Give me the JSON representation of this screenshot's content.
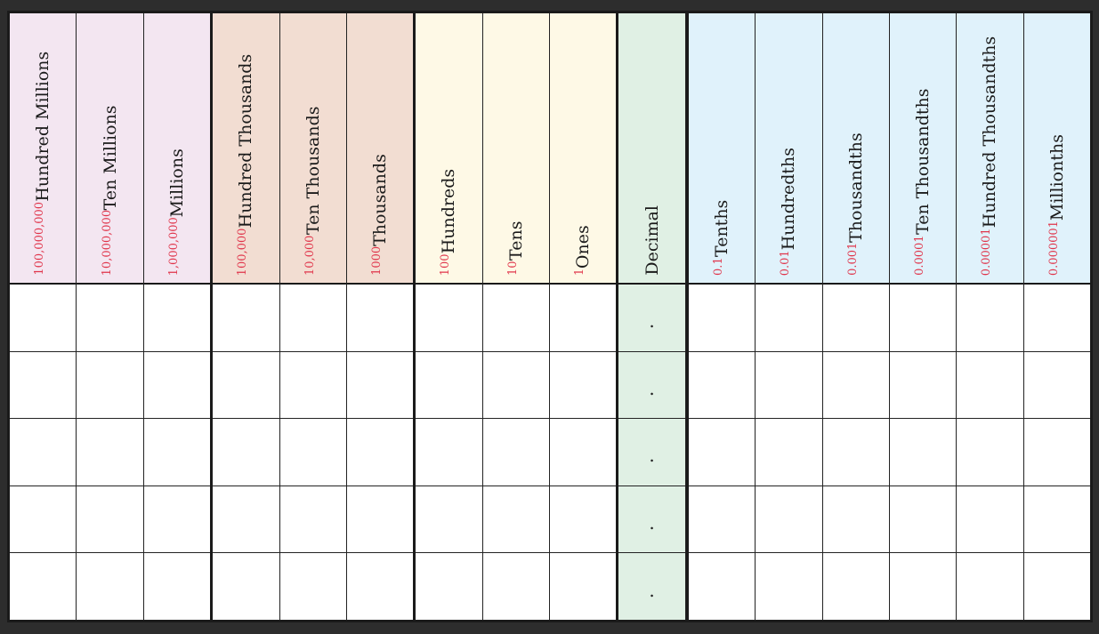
{
  "columns": [
    {
      "name": "Hundred Millions",
      "value": "100,000,000",
      "bg": "#f3e6f1",
      "group": "millions"
    },
    {
      "name": "Ten Millions",
      "value": "10,000,000",
      "bg": "#f3e6f1",
      "group": "millions"
    },
    {
      "name": "Millions",
      "value": "1,000,000",
      "bg": "#f3e6f1",
      "group": "millions"
    },
    {
      "name": "Hundred Thousands",
      "value": "100,000",
      "bg": "#f2ddd2",
      "group": "thousands"
    },
    {
      "name": "Ten Thousands",
      "value": "10,000",
      "bg": "#f2ddd2",
      "group": "thousands"
    },
    {
      "name": "Thousands",
      "value": "1000",
      "bg": "#f2ddd2",
      "group": "thousands"
    },
    {
      "name": "Hundreds",
      "value": "100",
      "bg": "#fef9e6",
      "group": "ones"
    },
    {
      "name": "Tens",
      "value": "10",
      "bg": "#fef9e6",
      "group": "ones"
    },
    {
      "name": "Ones",
      "value": "1",
      "bg": "#fef9e6",
      "group": "ones"
    },
    {
      "name": "Decimal",
      "value": "",
      "bg": "#e0f0e4",
      "group": "decimal"
    },
    {
      "name": "Tenths",
      "value": "0.1",
      "bg": "#e0f2fb",
      "group": "decimals"
    },
    {
      "name": "Hundredths",
      "value": "0.01",
      "bg": "#e0f2fb",
      "group": "decimals"
    },
    {
      "name": "Thousandths",
      "value": "0.001",
      "bg": "#e0f2fb",
      "group": "decimals"
    },
    {
      "name": "Ten Thousandths",
      "value": "0.0001",
      "bg": "#e0f2fb",
      "group": "decimals"
    },
    {
      "name": "Hundred Thousandths",
      "value": "0.00001",
      "bg": "#e0f2fb",
      "group": "decimals"
    },
    {
      "name": "Millionths",
      "value": "0.000001",
      "bg": "#e0f2fb",
      "group": "decimals"
    }
  ],
  "rows": 5,
  "decimal_point": "."
}
